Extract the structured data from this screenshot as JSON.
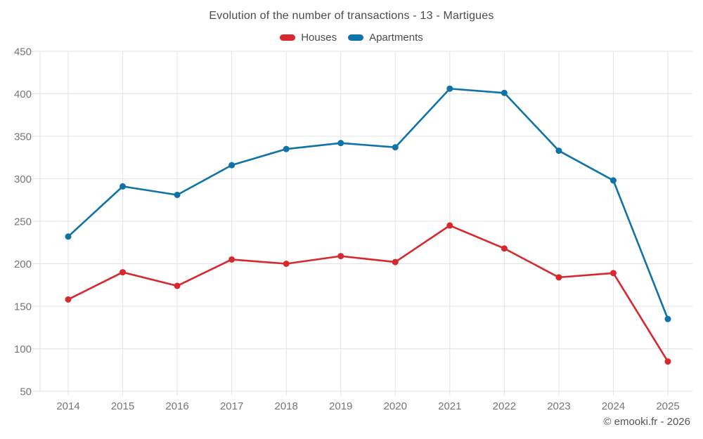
{
  "title": "Evolution of the number of transactions - 13 - Martigues",
  "watermark": "© emooki.fr - 2026",
  "colors": {
    "houses": "#d8282d",
    "apartments": "#0f73a8",
    "grid": "#e3e3e3",
    "axis_label": "#757575",
    "title_text": "#4a4a4a",
    "watermark_text": "#545454"
  },
  "legend": {
    "items": [
      {
        "label": "Houses",
        "color": "#d8282d"
      },
      {
        "label": "Apartments",
        "color": "#0f73a8"
      }
    ]
  },
  "chart_data": {
    "type": "line",
    "title": "Evolution of the number of transactions - 13 - Martigues",
    "categories": [
      "2014",
      "2015",
      "2016",
      "2017",
      "2018",
      "2019",
      "2020",
      "2021",
      "2022",
      "2023",
      "2024",
      "2025"
    ],
    "series": [
      {
        "name": "Houses",
        "color": "#d8282d",
        "values": [
          158,
          190,
          174,
          205,
          200,
          209,
          202,
          245,
          218,
          184,
          189,
          85
        ]
      },
      {
        "name": "Apartments",
        "color": "#0f73a8",
        "values": [
          232,
          291,
          281,
          316,
          335,
          342,
          337,
          406,
          401,
          333,
          298,
          135
        ]
      }
    ],
    "xlabel": "",
    "ylabel": "",
    "ylim": [
      50,
      450
    ],
    "ytick_step": 50,
    "yticks": [
      50,
      100,
      150,
      200,
      250,
      300,
      350,
      400,
      450
    ],
    "grid": true,
    "legend_position": "top"
  }
}
